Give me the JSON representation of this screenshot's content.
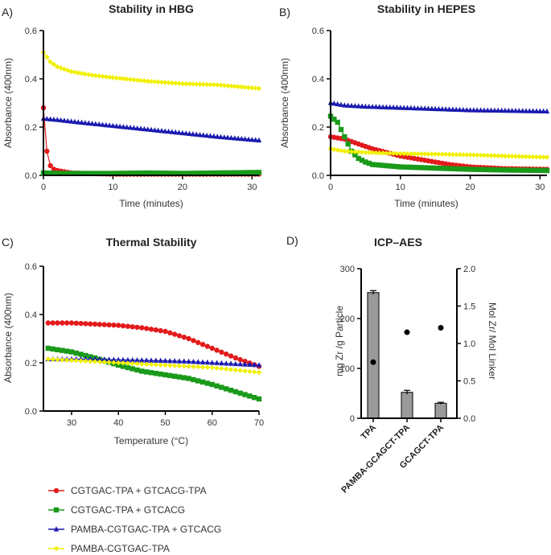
{
  "legend": [
    {
      "name": "CGTGAC-TPA + GTCACG-TPA",
      "color": "#e31a1c",
      "marker": "circle"
    },
    {
      "name": "CGTGAC-TPA + GTCACG",
      "color": "#1a9a1a",
      "marker": "square"
    },
    {
      "name": "PAMBA-CGTGAC-TPA + GTCACG",
      "color": "#1a1ab0",
      "marker": "triangle"
    },
    {
      "name": "PAMBA-CGTGAC-TPA",
      "color": "#f0f000",
      "marker": "diamond"
    }
  ],
  "chart_data": [
    {
      "panel": "A)",
      "type": "line",
      "title": "Stability in HBG",
      "xlabel": "Time (minutes)",
      "ylabel": "Absorbance (400nm)",
      "xlim": [
        0,
        31
      ],
      "ylim": [
        0,
        0.6
      ],
      "xticks": [
        "0",
        "10",
        "20",
        "30"
      ],
      "xtick_values": [
        0,
        10,
        20,
        30
      ],
      "yticks": [
        "0.0",
        "0.2",
        "0.4",
        "0.6"
      ],
      "ytick_values": [
        0,
        0.2,
        0.4,
        0.6
      ],
      "series": [
        {
          "name": "CGTGAC-TPA + GTCACG-TPA",
          "color": "#e31a1c",
          "marker": "circle",
          "x": [
            0,
            0.5,
            1,
            1.5,
            2,
            3,
            4,
            6,
            10,
            15,
            20,
            25,
            31
          ],
          "y": [
            0.28,
            0.1,
            0.04,
            0.025,
            0.02,
            0.015,
            0.01,
            0.008,
            0.005,
            0.005,
            0.005,
            0.005,
            0.005
          ]
        },
        {
          "name": "CGTGAC-TPA + GTCACG",
          "color": "#1a9a1a",
          "marker": "square",
          "x": [
            0,
            2,
            5,
            10,
            15,
            20,
            25,
            31
          ],
          "y": [
            0.01,
            0.008,
            0.008,
            0.008,
            0.01,
            0.008,
            0.01,
            0.012
          ]
        },
        {
          "name": "PAMBA-CGTGAC-TPA + GTCACG",
          "color": "#1a1ab0",
          "marker": "triangle",
          "x": [
            0,
            2,
            5,
            10,
            15,
            20,
            25,
            31
          ],
          "y": [
            0.235,
            0.23,
            0.22,
            0.205,
            0.19,
            0.175,
            0.16,
            0.145
          ]
        },
        {
          "name": "PAMBA-CGTGAC-TPA",
          "color": "#f0f000",
          "marker": "diamond",
          "x": [
            0,
            1,
            2,
            4,
            7,
            10,
            15,
            20,
            25,
            31
          ],
          "y": [
            0.51,
            0.47,
            0.45,
            0.43,
            0.415,
            0.405,
            0.39,
            0.38,
            0.375,
            0.36
          ]
        }
      ]
    },
    {
      "panel": "B)",
      "type": "line",
      "title": "Stability in HEPES",
      "xlabel": "Time (minutes)",
      "ylabel": "Absorbance (400nm)",
      "xlim": [
        0,
        31
      ],
      "ylim": [
        0,
        0.6
      ],
      "xticks": [
        "0",
        "10",
        "20",
        "30"
      ],
      "xtick_values": [
        0,
        10,
        20,
        30
      ],
      "yticks": [
        "0.0",
        "0.2",
        "0.4",
        "0.6"
      ],
      "ytick_values": [
        0,
        0.2,
        0.4,
        0.6
      ],
      "series": [
        {
          "name": "CGTGAC-TPA + GTCACG-TPA",
          "color": "#e31a1c",
          "marker": "circle",
          "x": [
            0,
            2,
            4,
            6,
            8,
            10,
            12,
            14,
            17,
            20,
            25,
            31
          ],
          "y": [
            0.16,
            0.15,
            0.13,
            0.11,
            0.095,
            0.08,
            0.07,
            0.06,
            0.045,
            0.035,
            0.028,
            0.025
          ]
        },
        {
          "name": "CGTGAC-TPA + GTCACG",
          "color": "#1a9a1a",
          "marker": "square",
          "x": [
            0,
            1,
            2,
            3,
            4,
            5,
            6,
            8,
            10,
            15,
            20,
            25,
            31
          ],
          "y": [
            0.245,
            0.22,
            0.16,
            0.1,
            0.07,
            0.055,
            0.045,
            0.04,
            0.035,
            0.03,
            0.025,
            0.022,
            0.02
          ]
        },
        {
          "name": "PAMBA-CGTGAC-TPA + GTCACG",
          "color": "#1a1ab0",
          "marker": "triangle",
          "x": [
            0,
            2,
            5,
            10,
            15,
            20,
            25,
            31
          ],
          "y": [
            0.3,
            0.29,
            0.285,
            0.28,
            0.275,
            0.27,
            0.268,
            0.265
          ]
        },
        {
          "name": "PAMBA-CGTGAC-TPA",
          "color": "#f0f000",
          "marker": "diamond",
          "x": [
            0,
            2,
            5,
            10,
            15,
            20,
            25,
            31
          ],
          "y": [
            0.11,
            0.1,
            0.095,
            0.09,
            0.088,
            0.085,
            0.08,
            0.075
          ]
        }
      ]
    },
    {
      "panel": "C)",
      "type": "line",
      "title": "Thermal Stability",
      "xlabel": "Temperature (°C)",
      "ylabel": "Absorbance (400nm)",
      "xlim": [
        24,
        70
      ],
      "ylim": [
        0,
        0.6
      ],
      "xticks": [
        "30",
        "40",
        "50",
        "60",
        "70"
      ],
      "xtick_values": [
        30,
        40,
        50,
        60,
        70
      ],
      "yticks": [
        "0.0",
        "0.2",
        "0.4",
        "0.6"
      ],
      "ytick_values": [
        0,
        0.2,
        0.4,
        0.6
      ],
      "series": [
        {
          "name": "CGTGAC-TPA + GTCACG-TPA",
          "color": "#e31a1c",
          "marker": "circle",
          "x": [
            25,
            30,
            35,
            40,
            45,
            50,
            55,
            60,
            65,
            70
          ],
          "y": [
            0.365,
            0.365,
            0.36,
            0.355,
            0.345,
            0.33,
            0.3,
            0.26,
            0.22,
            0.185
          ]
        },
        {
          "name": "CGTGAC-TPA + GTCACG",
          "color": "#1a9a1a",
          "marker": "square",
          "x": [
            25,
            30,
            35,
            40,
            45,
            50,
            55,
            60,
            65,
            70
          ],
          "y": [
            0.26,
            0.245,
            0.22,
            0.19,
            0.165,
            0.15,
            0.135,
            0.11,
            0.08,
            0.05
          ]
        },
        {
          "name": "PAMBA-CGTGAC-TPA + GTCACG",
          "color": "#1a1ab0",
          "marker": "triangle",
          "x": [
            25,
            30,
            35,
            40,
            45,
            50,
            55,
            60,
            65,
            70
          ],
          "y": [
            0.215,
            0.215,
            0.215,
            0.212,
            0.21,
            0.208,
            0.205,
            0.2,
            0.195,
            0.19
          ]
        },
        {
          "name": "PAMBA-CGTGAC-TPA",
          "color": "#f0f000",
          "marker": "diamond",
          "x": [
            25,
            30,
            35,
            40,
            45,
            50,
            55,
            60,
            65,
            70
          ],
          "y": [
            0.215,
            0.21,
            0.205,
            0.2,
            0.195,
            0.19,
            0.185,
            0.18,
            0.17,
            0.16
          ]
        }
      ]
    },
    {
      "panel": "D)",
      "type": "bar",
      "title": "ICP–AES",
      "ylabel": "mg Zr /g Particle",
      "y2label": "Mol Zr/ Mol Linker",
      "categories": [
        "TPA",
        "PAMBA-GCAGCT-TPA",
        "GCAGCT-TPA"
      ],
      "values": [
        252,
        52,
        30
      ],
      "errors": [
        4,
        4,
        2
      ],
      "secondary_values": [
        0.75,
        1.15,
        1.21
      ],
      "ylim": [
        0,
        300
      ],
      "y2lim": [
        0,
        2.0
      ],
      "yticks": [
        "0",
        "100",
        "200",
        "300"
      ],
      "ytick_values": [
        0,
        100,
        200,
        300
      ],
      "y2ticks": [
        "0.0",
        "0.5",
        "1.0",
        "1.5",
        "2.0"
      ],
      "y2tick_values": [
        0,
        0.5,
        1.0,
        1.5,
        2.0
      ],
      "bar_color": "#9a9a9a"
    }
  ]
}
